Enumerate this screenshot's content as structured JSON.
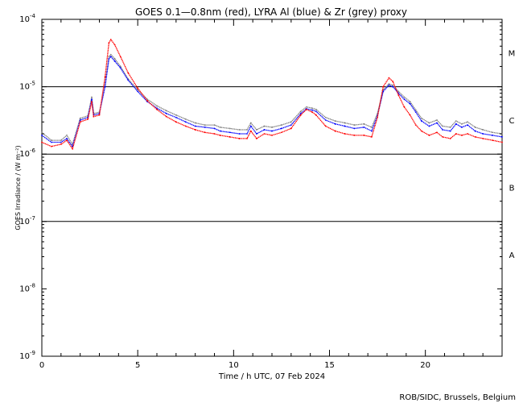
{
  "chart_data": {
    "type": "scatter",
    "title": "GOES 0.1—0.8nm (red), LYRA Al (blue) & Zr (grey) proxy",
    "xlabel": "Time / h UTC, 07 Feb 2024",
    "ylabel": "GOES Irradiance / (W m⁻²)",
    "footer": "ROB/SIDC, Brussels, Belgium",
    "xlim": [
      0,
      24
    ],
    "ylim": [
      1e-09,
      0.0001
    ],
    "yscale": "log",
    "x_ticks": [
      "0",
      "5",
      "10",
      "15",
      "20"
    ],
    "x_tick_values": [
      0,
      5,
      10,
      15,
      20
    ],
    "y_ticks": [
      {
        "base": "10",
        "exp": "-4",
        "value": 0.0001
      },
      {
        "base": "10",
        "exp": "-5",
        "value": 1e-05
      },
      {
        "base": "10",
        "exp": "-6",
        "value": 1e-06
      },
      {
        "base": "10",
        "exp": "-7",
        "value": 1e-07
      },
      {
        "base": "10",
        "exp": "-8",
        "value": 1e-08
      },
      {
        "base": "10",
        "exp": "-9",
        "value": 1e-09
      }
    ],
    "class_levels": [
      1e-05,
      1e-06,
      1e-07
    ],
    "class_labels": [
      {
        "label": "M",
        "value": 3.2e-05
      },
      {
        "label": "C",
        "value": 3.2e-06
      },
      {
        "label": "B",
        "value": 3.2e-07
      },
      {
        "label": "A",
        "value": 3.2e-08
      }
    ],
    "colors": {
      "goes": "#ff0000",
      "lyra_al": "#0000ff",
      "lyra_zr": "#808080"
    },
    "series": [
      {
        "color": "#808080",
        "x": [
          0.0,
          0.5,
          1.0,
          1.3,
          1.6,
          2.0,
          2.4,
          2.6,
          2.7,
          3.0,
          3.3,
          3.5,
          3.6,
          3.8,
          4.1,
          4.5,
          5.0,
          5.5,
          6.0,
          6.5,
          7.0,
          7.5,
          8.0,
          8.5,
          9.0,
          9.3,
          9.8,
          10.3,
          10.7,
          10.9,
          11.2,
          11.6,
          12.0,
          12.5,
          13.0,
          13.5,
          13.8,
          14.1,
          14.3,
          14.8,
          15.3,
          15.8,
          16.3,
          16.8,
          17.2,
          17.5,
          17.8,
          18.1,
          18.3,
          18.6,
          18.9,
          19.2,
          19.5,
          19.8,
          20.2,
          20.6,
          20.9,
          21.3,
          21.6,
          21.9,
          22.2,
          22.6,
          23.0,
          23.5,
          24.0
        ],
        "y": [
          2.1e-06,
          1.6e-06,
          1.6e-06,
          1.9e-06,
          1.4e-06,
          3.4e-06,
          3.7e-06,
          7e-06,
          4e-06,
          4.2e-06,
          1.1e-05,
          2.8e-05,
          3e-05,
          2.6e-05,
          2e-05,
          1.3e-05,
          9e-06,
          6.5e-06,
          5.2e-06,
          4.4e-06,
          3.8e-06,
          3.3e-06,
          2.9e-06,
          2.7e-06,
          2.7e-06,
          2.5e-06,
          2.4e-06,
          2.3e-06,
          2.3e-06,
          2.9e-06,
          2.3e-06,
          2.6e-06,
          2.5e-06,
          2.7e-06,
          3e-06,
          4.3e-06,
          5e-06,
          4.8e-06,
          4.6e-06,
          3.5e-06,
          3.1e-06,
          2.9e-06,
          2.7e-06,
          2.8e-06,
          2.5e-06,
          4e-06,
          9e-06,
          1.1e-05,
          1.05e-05,
          8.5e-06,
          7e-06,
          6e-06,
          4.5e-06,
          3.4e-06,
          2.9e-06,
          3.2e-06,
          2.6e-06,
          2.5e-06,
          3.1e-06,
          2.8e-06,
          3e-06,
          2.5e-06,
          2.3e-06,
          2.1e-06,
          2e-06
        ]
      },
      {
        "color": "#0000ff",
        "x": [
          0.0,
          0.5,
          1.0,
          1.3,
          1.6,
          2.0,
          2.4,
          2.6,
          2.7,
          3.0,
          3.3,
          3.5,
          3.6,
          3.8,
          4.1,
          4.5,
          5.0,
          5.5,
          6.0,
          6.5,
          7.0,
          7.5,
          8.0,
          8.5,
          9.0,
          9.3,
          9.8,
          10.3,
          10.7,
          10.9,
          11.2,
          11.6,
          12.0,
          12.5,
          13.0,
          13.5,
          13.8,
          14.1,
          14.3,
          14.8,
          15.3,
          15.8,
          16.3,
          16.8,
          17.2,
          17.5,
          17.8,
          18.1,
          18.3,
          18.6,
          18.9,
          19.2,
          19.5,
          19.8,
          20.2,
          20.6,
          20.9,
          21.3,
          21.6,
          21.9,
          22.2,
          22.6,
          23.0,
          23.5,
          24.0
        ],
        "y": [
          1.9e-06,
          1.5e-06,
          1.5e-06,
          1.7e-06,
          1.3e-06,
          3.2e-06,
          3.5e-06,
          6.5e-06,
          3.8e-06,
          4e-06,
          1e-05,
          2.6e-05,
          2.8e-05,
          2.4e-05,
          1.9e-05,
          1.25e-05,
          8.5e-06,
          6e-06,
          4.8e-06,
          4e-06,
          3.5e-06,
          3e-06,
          2.6e-06,
          2.5e-06,
          2.4e-06,
          2.2e-06,
          2.1e-06,
          2e-06,
          2e-06,
          2.6e-06,
          2e-06,
          2.3e-06,
          2.2e-06,
          2.4e-06,
          2.7e-06,
          4e-06,
          4.7e-06,
          4.5e-06,
          4.3e-06,
          3.2e-06,
          2.8e-06,
          2.6e-06,
          2.4e-06,
          2.5e-06,
          2.2e-06,
          3.7e-06,
          8.5e-06,
          1.05e-05,
          1e-05,
          8e-06,
          6.5e-06,
          5.6e-06,
          4.2e-06,
          3.1e-06,
          2.6e-06,
          2.9e-06,
          2.3e-06,
          2.2e-06,
          2.8e-06,
          2.5e-06,
          2.7e-06,
          2.2e-06,
          2e-06,
          1.9e-06,
          1.8e-06
        ]
      },
      {
        "color": "#ff0000",
        "x": [
          0.0,
          0.5,
          1.0,
          1.3,
          1.6,
          2.0,
          2.4,
          2.6,
          2.7,
          3.0,
          3.3,
          3.5,
          3.6,
          3.8,
          4.1,
          4.5,
          5.0,
          5.5,
          6.0,
          6.5,
          7.0,
          7.5,
          8.0,
          8.5,
          9.0,
          9.3,
          9.8,
          10.3,
          10.7,
          10.9,
          11.2,
          11.6,
          12.0,
          12.5,
          13.0,
          13.5,
          13.8,
          14.1,
          14.3,
          14.8,
          15.3,
          15.8,
          16.3,
          16.8,
          17.2,
          17.5,
          17.8,
          18.1,
          18.3,
          18.6,
          18.9,
          19.2,
          19.5,
          19.8,
          20.2,
          20.6,
          20.9,
          21.3,
          21.6,
          21.9,
          22.2,
          22.6,
          23.0,
          23.5,
          24.0
        ],
        "y": [
          1.5e-06,
          1.3e-06,
          1.4e-06,
          1.6e-06,
          1.2e-06,
          3e-06,
          3.3e-06,
          6e-06,
          3.6e-06,
          3.8e-06,
          1.4e-05,
          4.5e-05,
          5e-05,
          4.2e-05,
          2.8e-05,
          1.6e-05,
          9.5e-06,
          6.2e-06,
          4.6e-06,
          3.6e-06,
          3e-06,
          2.6e-06,
          2.3e-06,
          2.1e-06,
          2e-06,
          1.9e-06,
          1.8e-06,
          1.7e-06,
          1.7e-06,
          2.2e-06,
          1.7e-06,
          2e-06,
          1.9e-06,
          2.1e-06,
          2.4e-06,
          3.8e-06,
          4.6e-06,
          4.2e-06,
          3.8e-06,
          2.6e-06,
          2.2e-06,
          2e-06,
          1.9e-06,
          1.9e-06,
          1.8e-06,
          3.5e-06,
          1e-05,
          1.35e-05,
          1.2e-05,
          7.5e-06,
          5e-06,
          3.8e-06,
          2.7e-06,
          2.2e-06,
          1.9e-06,
          2.1e-06,
          1.8e-06,
          1.7e-06,
          2e-06,
          1.9e-06,
          2e-06,
          1.8e-06,
          1.7e-06,
          1.6e-06,
          1.5e-06
        ]
      }
    ]
  }
}
